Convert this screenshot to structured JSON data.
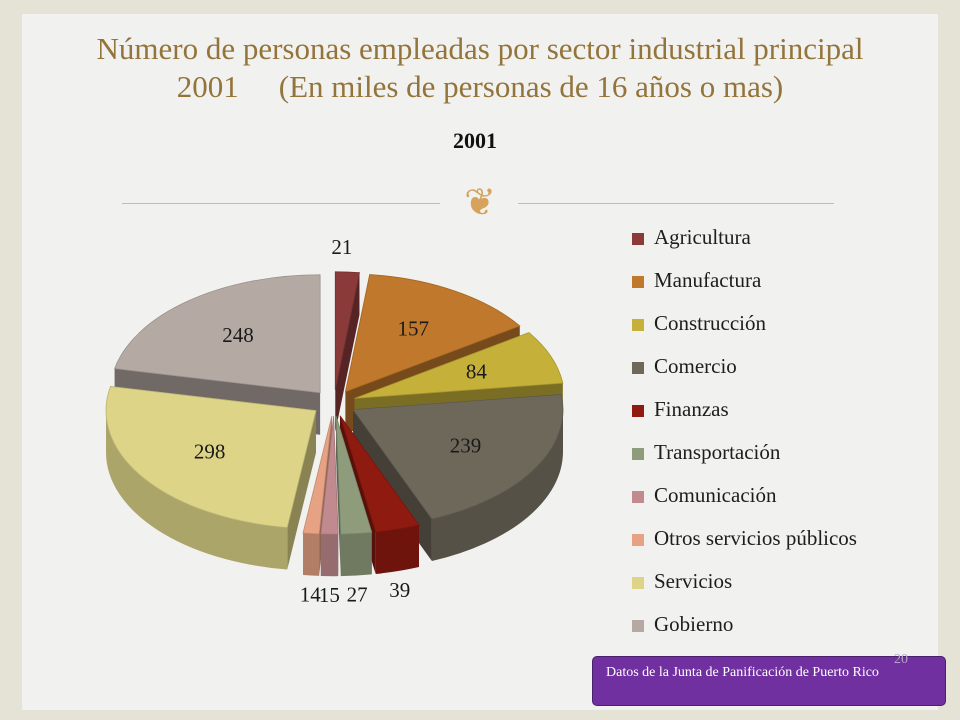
{
  "slide": {
    "title_line1": "Número de personas empleadas por sector industrial principal",
    "title_line2a": "2001",
    "title_line2b": "(En miles de personas de 16 años o mas)",
    "ornament_icon": "decorative-scroll-icon",
    "source_note": "Datos de la Junta de Panificación de Puerto Rico",
    "page_number": "20"
  },
  "chart_data": {
    "type": "pie",
    "title": "2001",
    "exploded": true,
    "three_d": true,
    "legend_position": "right",
    "categories": [
      "Agricultura",
      "Manufactura",
      "Construcción",
      "Comercio",
      "Finanzas",
      "Transportación",
      "Comunicación",
      "Otros servicios públicos",
      "Servicios",
      "Gobierno"
    ],
    "values": [
      21,
      157,
      84,
      239,
      39,
      27,
      15,
      14,
      298,
      248
    ],
    "data_labels": [
      "21",
      "157",
      "84",
      "239",
      "39",
      "27",
      "15",
      "14",
      "298",
      "248"
    ],
    "colors": [
      "#8b3a3a",
      "#c0782c",
      "#c5b13a",
      "#6e685a",
      "#8e1a10",
      "#8f9c7c",
      "#c08a8e",
      "#e6a283",
      "#ddd487",
      "#b4aaa3"
    ]
  }
}
